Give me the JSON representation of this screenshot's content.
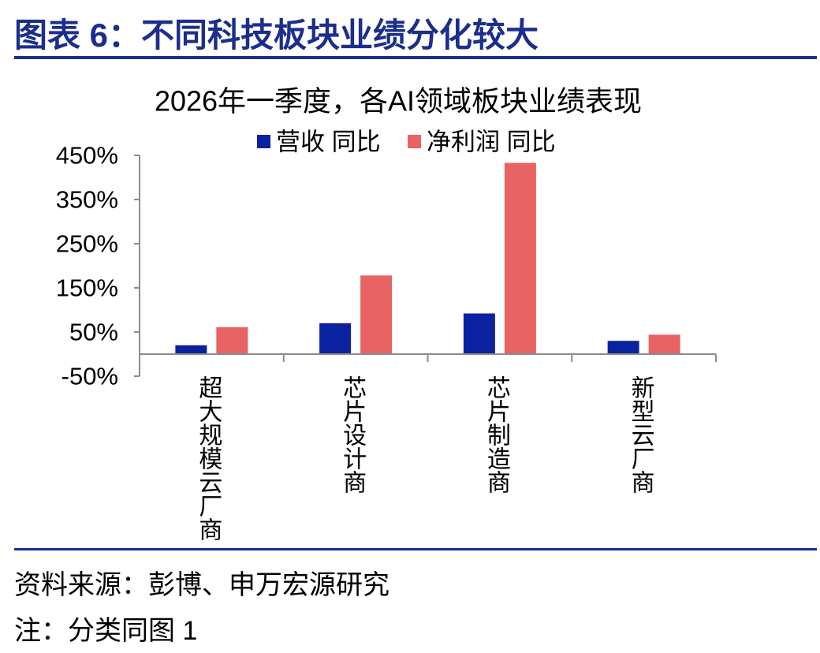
{
  "header": {
    "title": "图表 6：不同科技板块业绩分化较大"
  },
  "chart_data": {
    "type": "bar",
    "title": "2026年一季度，各AI领域板块业绩表现",
    "categories": [
      "超大规模云厂商",
      "芯片设计商",
      "芯片制造商",
      "新型云厂商"
    ],
    "series": [
      {
        "name": "营收 同比",
        "values": [
          20,
          70,
          92,
          30
        ],
        "color": "#0a21a0"
      },
      {
        "name": "净利润 同比",
        "values": [
          61,
          178,
          433,
          44
        ],
        "color": "#e86363"
      }
    ],
    "ylim": [
      -50,
      450
    ],
    "yticks": [
      450,
      350,
      250,
      150,
      50,
      -50
    ],
    "ytick_labels": [
      "450%",
      "350%",
      "250%",
      "150%",
      "50%",
      "-50%"
    ],
    "legend_position": "top",
    "grid": false
  },
  "footer": {
    "source": "资料来源：彭博、申万宏源研究",
    "note": "注：分类同图 1"
  },
  "colors": {
    "title": "#1c2e8c",
    "divider": "#1c2e8c",
    "axis": "#8c8c8c"
  }
}
